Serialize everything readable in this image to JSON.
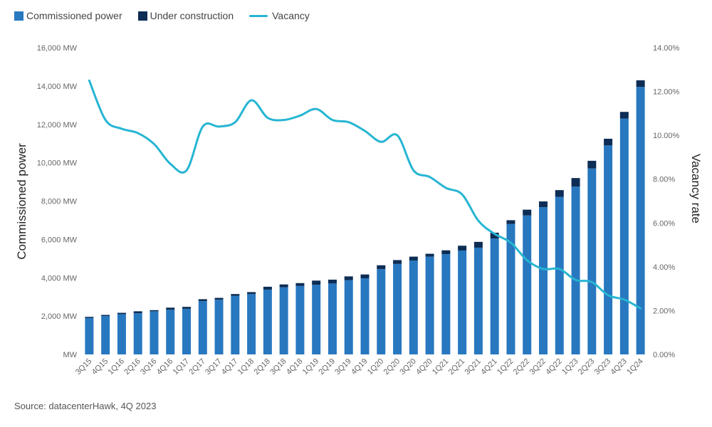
{
  "chart_data": {
    "type": "bar",
    "categories": [
      "3Q15",
      "4Q15",
      "1Q16",
      "2Q16",
      "3Q16",
      "4Q16",
      "1Q17",
      "2Q17",
      "3Q17",
      "4Q17",
      "1Q18",
      "2Q18",
      "3Q18",
      "4Q18",
      "1Q19",
      "2Q19",
      "3Q19",
      "4Q19",
      "1Q20",
      "2Q20",
      "3Q20",
      "4Q20",
      "1Q21",
      "2Q21",
      "3Q21",
      "4Q21",
      "1Q22",
      "2Q22",
      "3Q22",
      "4Q22",
      "1Q23",
      "2Q23",
      "3Q23",
      "4Q23",
      "1Q24"
    ],
    "series": [
      {
        "name": "Commissioned power",
        "type": "bar",
        "stack": "power",
        "color": "#2878c0",
        "values": [
          1900,
          2000,
          2100,
          2150,
          2250,
          2330,
          2380,
          2780,
          2850,
          3050,
          3150,
          3380,
          3500,
          3570,
          3630,
          3700,
          3870,
          3970,
          4450,
          4720,
          4900,
          5100,
          5230,
          5420,
          5570,
          6050,
          6800,
          7250,
          7680,
          8220,
          8750,
          9700,
          10900,
          12300,
          13950
        ]
      },
      {
        "name": "Under construction",
        "type": "bar",
        "stack": "power",
        "color": "#0d2d55",
        "values": [
          60,
          60,
          70,
          100,
          60,
          110,
          100,
          100,
          100,
          100,
          100,
          150,
          150,
          150,
          220,
          200,
          200,
          200,
          200,
          200,
          200,
          150,
          200,
          250,
          300,
          300,
          200,
          300,
          300,
          350,
          450,
          400,
          350,
          350,
          350
        ]
      },
      {
        "name": "Vacancy",
        "type": "line",
        "axis": "right",
        "color": "#26b5d2",
        "values": [
          12.5,
          10.7,
          10.3,
          10.1,
          9.6,
          8.7,
          8.4,
          10.4,
          10.4,
          10.6,
          11.6,
          10.8,
          10.7,
          10.9,
          11.2,
          10.7,
          10.6,
          10.2,
          9.7,
          10.0,
          8.4,
          8.1,
          7.6,
          7.3,
          6.1,
          5.5,
          5.1,
          4.3,
          3.9,
          3.9,
          3.4,
          3.3,
          2.7,
          2.5,
          2.1
        ]
      }
    ],
    "y_left": {
      "label": "Commissioned power",
      "min": 0,
      "max": 16000,
      "ticks": [
        "MW",
        "2,000 MW",
        "4,000 MW",
        "6,000 MW",
        "8,000 MW",
        "10,000 MW",
        "12,000 MW",
        "14,000 MW",
        "16,000 MW"
      ]
    },
    "y_right": {
      "label": "Vacancy rate",
      "min": 0,
      "max": 14,
      "ticks": [
        "0.00%",
        "2.00%",
        "4.00%",
        "6.00%",
        "8.00%",
        "10.00%",
        "12.00%",
        "14.00%"
      ]
    },
    "grid": false,
    "legend_position": "top-left"
  },
  "legend": {
    "items": [
      {
        "label": "Commissioned power",
        "color": "#2878c0",
        "marker": "square"
      },
      {
        "label": "Under construction",
        "color": "#0d2d55",
        "marker": "square"
      },
      {
        "label": "Vacancy",
        "color": "#26b5d2",
        "marker": "line"
      }
    ]
  },
  "source": "Source: datacenterHawk, 4Q 2023"
}
